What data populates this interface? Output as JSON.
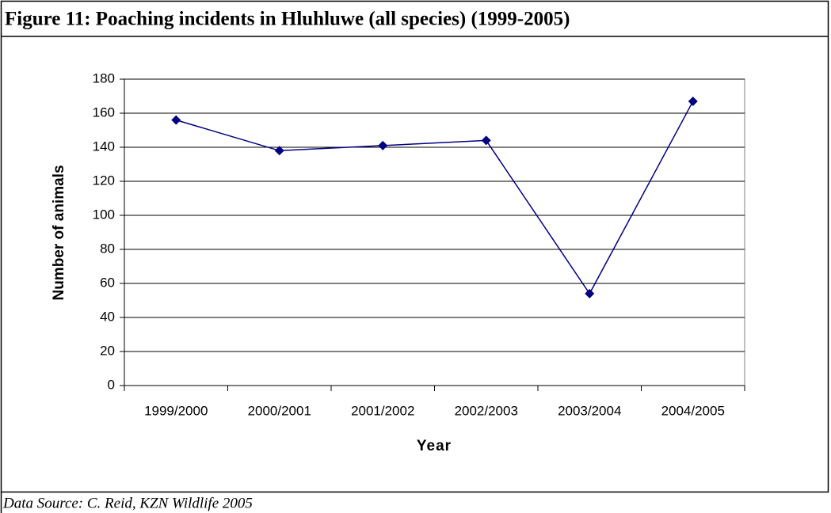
{
  "chart_data": {
    "type": "line",
    "title": "Figure 11: Poaching incidents in Hluhluwe (all species) (1999-2005)",
    "source": "Data Source: C. Reid, KZN Wildlife 2005",
    "x_label": "Year",
    "y_label": "Number of animals",
    "categories": [
      "1999/2000",
      "2000/2001",
      "2001/2002",
      "2002/2003",
      "2003/2004",
      "2004/2005"
    ],
    "values": [
      156,
      138,
      141,
      144,
      54,
      167
    ],
    "color": "#000080",
    "ylim": [
      0,
      180
    ],
    "yticks": [
      0,
      20,
      40,
      60,
      80,
      100,
      120,
      140,
      160,
      180
    ],
    "grid": true
  }
}
